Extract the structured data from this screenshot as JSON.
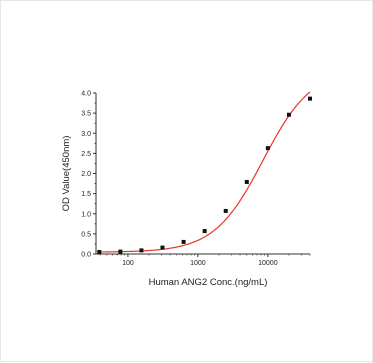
{
  "chart_data": {
    "type": "scatter",
    "title": "",
    "xlabel": "Human ANG2 Conc.(ng/mL)",
    "ylabel": "OD Value(450nm)",
    "x_scale": "log",
    "xlim": [
      35,
      40000
    ],
    "ylim": [
      0,
      4.0
    ],
    "x_tick_values": [
      100,
      1000,
      10000
    ],
    "x_tick_labels": [
      "100",
      "1000",
      "10000"
    ],
    "y_tick_values": [
      0,
      0.5,
      1.0,
      1.5,
      2.0,
      2.5,
      3.0,
      3.5,
      4.0
    ],
    "y_tick_labels": [
      "0.0",
      "0.5",
      "1.0",
      "1.5",
      "2.0",
      "2.5",
      "3.0",
      "3.5",
      "4.0"
    ],
    "grid": false,
    "legend": "none",
    "series": [
      {
        "marker": "square",
        "color": "#111111",
        "x": [
          39,
          78,
          156,
          312,
          625,
          1250,
          2500,
          5000,
          10000,
          20000,
          40000
        ],
        "y": [
          0.05,
          0.06,
          0.09,
          0.16,
          0.3,
          0.57,
          1.07,
          1.79,
          2.63,
          3.46,
          3.86
        ]
      }
    ],
    "fit_curve": {
      "type": "4PL",
      "color": "#e8352a",
      "bottom": 0.045,
      "top": 4.6,
      "ec50": 8500,
      "hill": 1.25,
      "x_range": [
        39,
        40000
      ]
    }
  }
}
